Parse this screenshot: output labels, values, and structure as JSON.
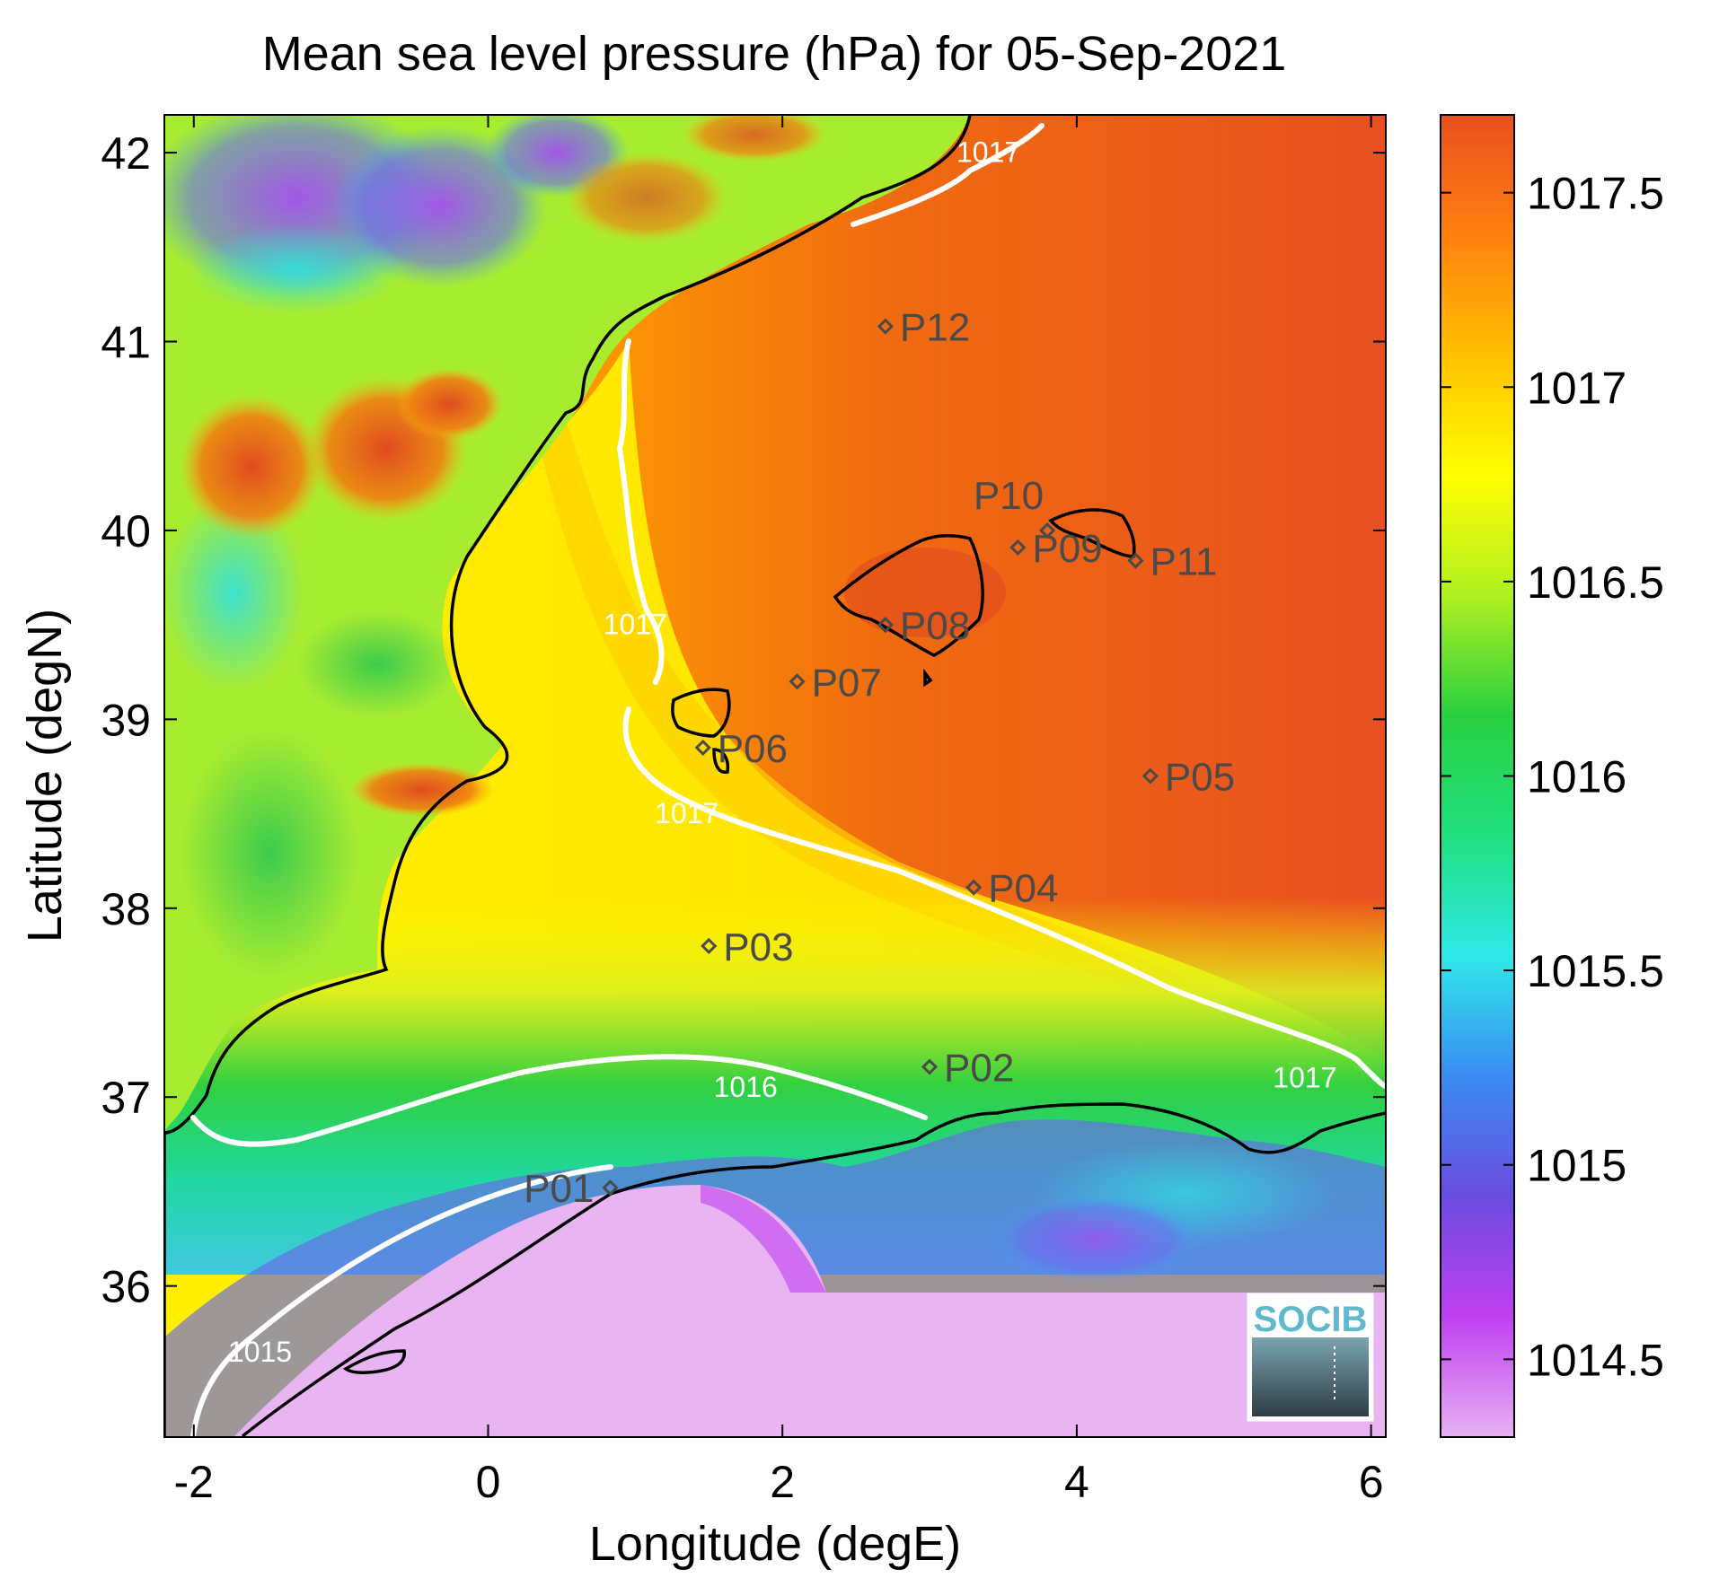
{
  "title": "Mean sea level pressure (hPa) for 05-Sep-2021",
  "x_axis": {
    "label": "Longitude (degE)",
    "range": [
      -2.2,
      6.1
    ],
    "ticks": [
      {
        "value": -2,
        "label": "-2"
      },
      {
        "value": 0,
        "label": "0"
      },
      {
        "value": 2,
        "label": "2"
      },
      {
        "value": 4,
        "label": "4"
      },
      {
        "value": 6,
        "label": "6"
      }
    ]
  },
  "y_axis": {
    "label": "Latitude (degN)",
    "range": [
      35.2,
      42.2
    ],
    "ticks": [
      {
        "value": 36,
        "label": "36"
      },
      {
        "value": 37,
        "label": "37"
      },
      {
        "value": 38,
        "label": "38"
      },
      {
        "value": 39,
        "label": "39"
      },
      {
        "value": 40,
        "label": "40"
      },
      {
        "value": 41,
        "label": "41"
      },
      {
        "value": 42,
        "label": "42"
      }
    ]
  },
  "colorbar": {
    "range": [
      1014.3,
      1017.7
    ],
    "ticks": [
      {
        "value": 1014.5,
        "label": "1014.5"
      },
      {
        "value": 1015,
        "label": "1015"
      },
      {
        "value": 1015.5,
        "label": "1015.5"
      },
      {
        "value": 1016,
        "label": "1016"
      },
      {
        "value": 1016.5,
        "label": "1016.5"
      },
      {
        "value": 1017,
        "label": "1017"
      },
      {
        "value": 1017.5,
        "label": "1017.5"
      }
    ],
    "colors": [
      "#e6b2f2",
      "#c040f0",
      "#6a4ce0",
      "#3a8cf0",
      "#30e8e8",
      "#20e080",
      "#28d040",
      "#b0f020",
      "#ffff00",
      "#ffc000",
      "#ff8010",
      "#e85020"
    ]
  },
  "stations": [
    {
      "label": "P01",
      "lon": 0.83,
      "lat": 36.52
    },
    {
      "label": "P02",
      "lon": 3.0,
      "lat": 37.16
    },
    {
      "label": "P03",
      "lon": 1.5,
      "lat": 37.8
    },
    {
      "label": "P04",
      "lon": 3.3,
      "lat": 38.11
    },
    {
      "label": "P05",
      "lon": 4.5,
      "lat": 38.7
    },
    {
      "label": "P06",
      "lon": 1.46,
      "lat": 38.85
    },
    {
      "label": "P07",
      "lon": 2.1,
      "lat": 39.2
    },
    {
      "label": "P08",
      "lon": 2.7,
      "lat": 39.5
    },
    {
      "label": "P09",
      "lon": 3.6,
      "lat": 39.91
    },
    {
      "label": "P10",
      "lon": 3.8,
      "lat": 40.0
    },
    {
      "label": "P11",
      "lon": 4.4,
      "lat": 39.84
    },
    {
      "label": "P12",
      "lon": 2.7,
      "lat": 41.08
    }
  ],
  "contour_labels": [
    {
      "text": "1017",
      "lon": 3.4,
      "lat": 41.95
    },
    {
      "text": "1017",
      "lon": 1.0,
      "lat": 39.45
    },
    {
      "text": "1017",
      "lon": 1.35,
      "lat": 38.45
    },
    {
      "text": "1017",
      "lon": 5.55,
      "lat": 37.05
    },
    {
      "text": "1016",
      "lon": 1.75,
      "lat": 37.0
    },
    {
      "text": "1015",
      "lon": -1.55,
      "lat": 35.6
    }
  ],
  "logo_text": "SOCIB"
}
